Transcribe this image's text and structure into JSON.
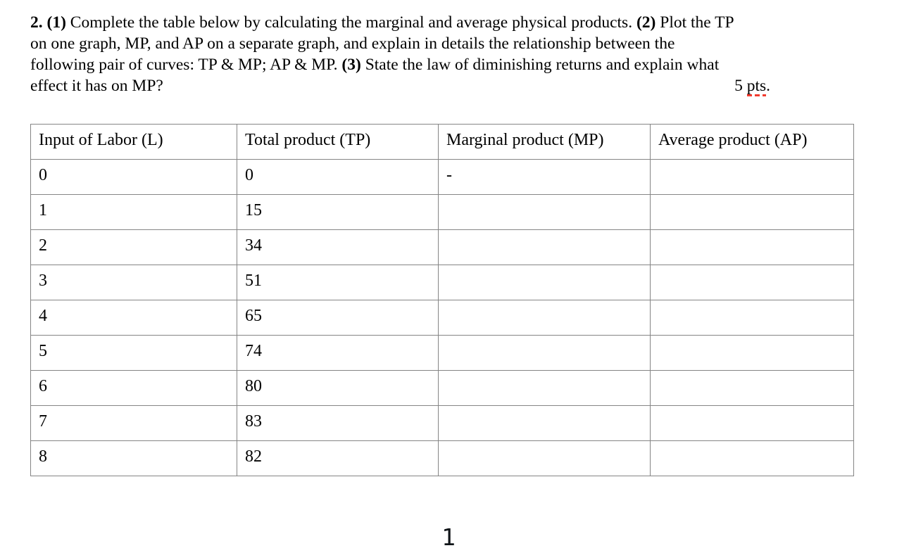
{
  "question": {
    "lines": [
      {
        "segments": [
          {
            "text": "2. (1)",
            "bold": true
          },
          {
            "text": " Complete the table below by calculating the marginal and average physical products. ",
            "bold": false
          },
          {
            "text": "(2)",
            "bold": true
          },
          {
            "text": " Plot the TP",
            "bold": false
          }
        ]
      },
      {
        "segments": [
          {
            "text": "on one graph, MP, and AP on a separate graph, and explain in details the relationship between the",
            "bold": false
          }
        ]
      },
      {
        "segments": [
          {
            "text": "following pair of curves: TP & MP; AP & MP. ",
            "bold": false
          },
          {
            "text": "(3)",
            "bold": true
          },
          {
            "text": " State the law of diminishing returns and explain what",
            "bold": false
          }
        ]
      },
      {
        "segments": [
          {
            "text": "effect it has on MP?",
            "bold": false
          }
        ]
      }
    ],
    "points": {
      "prefix": "5 ",
      "word": "pts",
      "suffix": "."
    }
  },
  "table": {
    "headers": [
      "Input of Labor (L)",
      "Total product (TP)",
      "Marginal product (MP)",
      "Average product (AP)"
    ],
    "rows": [
      {
        "labor": "0",
        "tp": "0",
        "mp": "-",
        "ap": ""
      },
      {
        "labor": "1",
        "tp": "15",
        "mp": "",
        "ap": ""
      },
      {
        "labor": "2",
        "tp": "34",
        "mp": "",
        "ap": ""
      },
      {
        "labor": "3",
        "tp": "51",
        "mp": "",
        "ap": ""
      },
      {
        "labor": "4",
        "tp": "65",
        "mp": "",
        "ap": ""
      },
      {
        "labor": "5",
        "tp": "74",
        "mp": "",
        "ap": ""
      },
      {
        "labor": "6",
        "tp": "80",
        "mp": "",
        "ap": ""
      },
      {
        "labor": "7",
        "tp": "83",
        "mp": "",
        "ap": ""
      },
      {
        "labor": "8",
        "tp": "82",
        "mp": "",
        "ap": ""
      }
    ]
  },
  "footer": {
    "page_number": "1"
  },
  "colors": {
    "border": "#858585",
    "spellcheck": "#f23b2e",
    "text": "#000000",
    "background": "#ffffff"
  }
}
